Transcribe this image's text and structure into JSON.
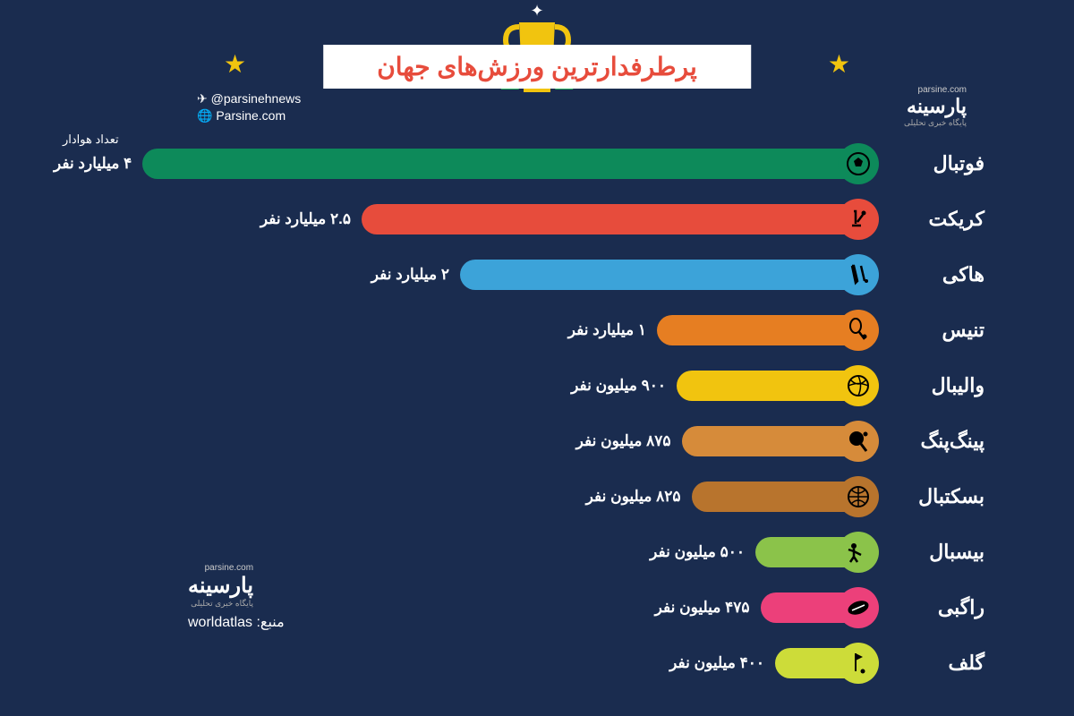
{
  "title": "پرطرفدارترین ورزش‌های جهان",
  "fans_label": "تعداد هوادار",
  "social": {
    "handle": "@parsinehnews",
    "website": "Parsine.com"
  },
  "brand": {
    "name": "پارسینه",
    "subtitle": "پایگاه خبری تحلیلی",
    "url": "parsine.com"
  },
  "source_label": "منبع:",
  "source_value": "worldatlas",
  "background_color": "#1a2c4f",
  "title_bg": "#ffffff",
  "title_color": "#e74c3c",
  "star_color": "#f1c40f",
  "trophy_color": "#f1c40f",
  "laurel_color": "#27ae60",
  "max_value": 4000,
  "max_bar_width": 880,
  "sports": [
    {
      "name": "فوتبال",
      "value_label": "۴ میلیارد نفر",
      "value": 4000,
      "color": "#0d8a5a",
      "icon": "soccer"
    },
    {
      "name": "کریکت",
      "value_label": "۲.۵ میلیارد نفر",
      "value": 2500,
      "color": "#e74c3c",
      "icon": "cricket"
    },
    {
      "name": "هاکی",
      "value_label": "۲ میلیارد نفر",
      "value": 2000,
      "color": "#3ca3d9",
      "icon": "hockey"
    },
    {
      "name": "تنیس",
      "value_label": "۱ میلیارد نفر",
      "value": 1000,
      "color": "#e67e22",
      "icon": "tennis"
    },
    {
      "name": "والیبال",
      "value_label": "۹۰۰ میلیون نفر",
      "value": 900,
      "color": "#f1c40f",
      "icon": "volleyball"
    },
    {
      "name": "پینگ‌پنگ",
      "value_label": "۸۷۵ میلیون نفر",
      "value": 875,
      "color": "#d68b3a",
      "icon": "pingpong"
    },
    {
      "name": "بسکتبال",
      "value_label": "۸۲۵ میلیون نفر",
      "value": 825,
      "color": "#b8742d",
      "icon": "basketball"
    },
    {
      "name": "بیسبال",
      "value_label": "۵۰۰ میلیون نفر",
      "value": 500,
      "color": "#8bc34a",
      "icon": "baseball"
    },
    {
      "name": "راگبی",
      "value_label": "۴۷۵ میلیون نفر",
      "value": 475,
      "color": "#ec407a",
      "icon": "rugby"
    },
    {
      "name": "گلف",
      "value_label": "۴۰۰ میلیون نفر",
      "value": 400,
      "color": "#cddc39",
      "icon": "golf"
    }
  ]
}
